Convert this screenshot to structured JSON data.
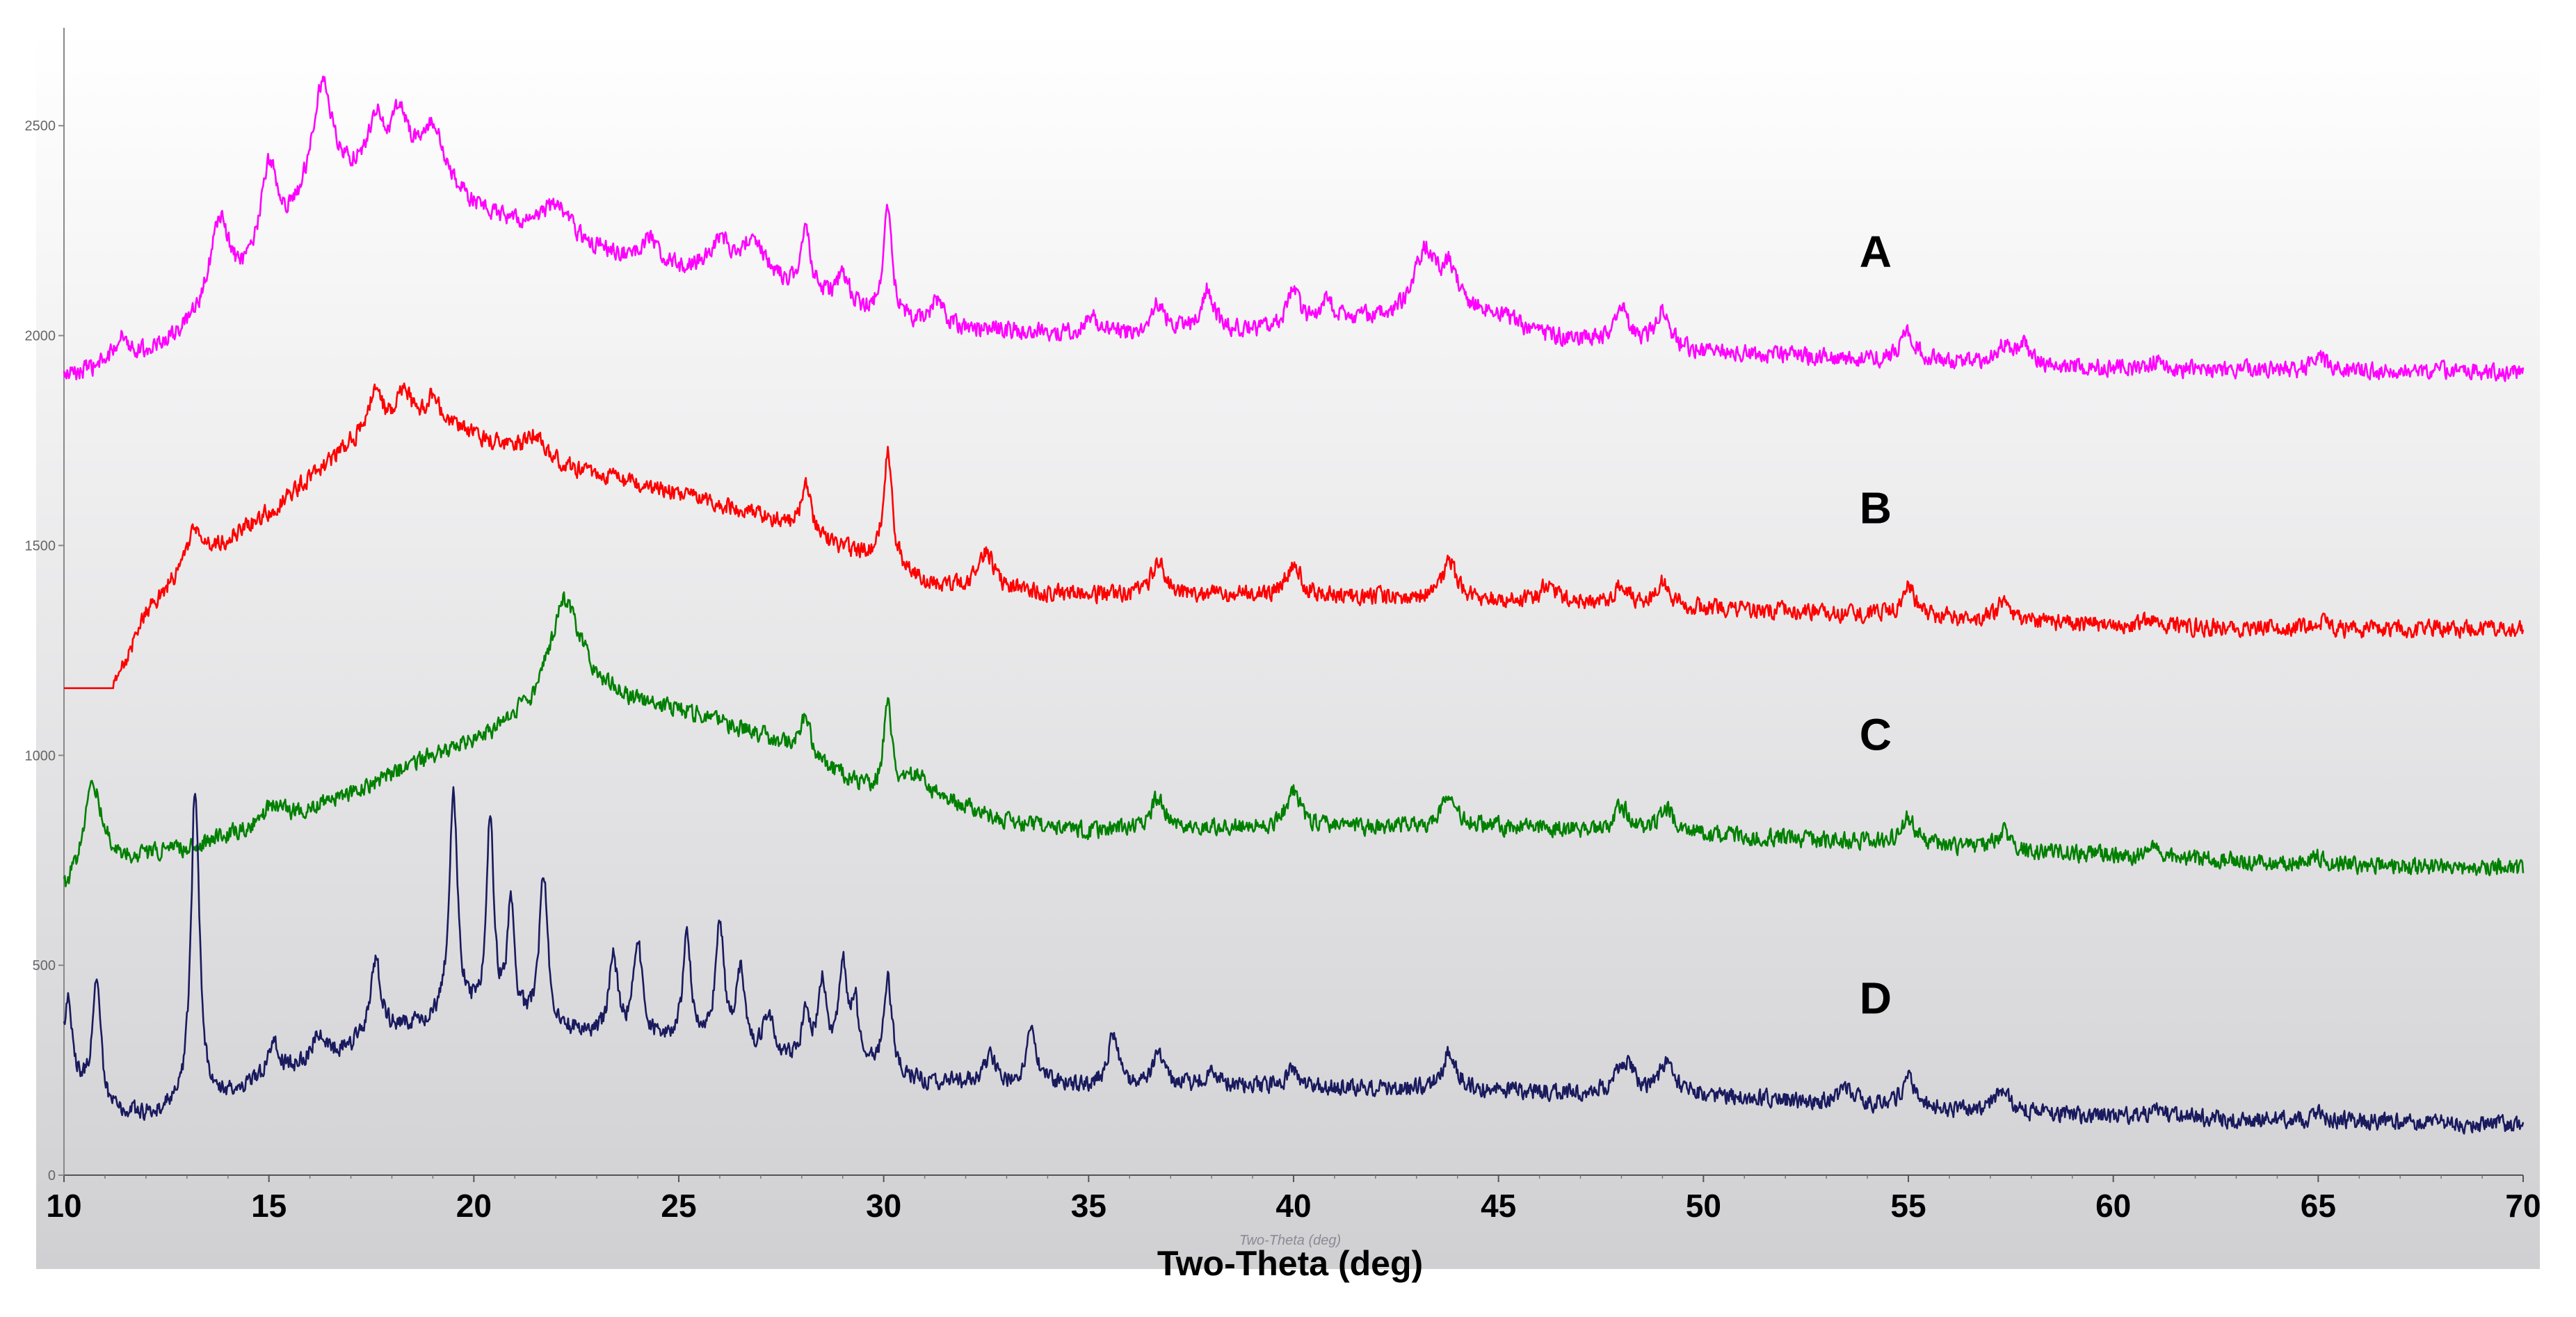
{
  "chart_data": {
    "type": "line",
    "title": "",
    "xlabel": "Two-Theta (deg)",
    "xlabel_ghost": "Two-Theta (deg)",
    "ylabel": "",
    "xlim": [
      10,
      70
    ],
    "ylim": [
      0,
      2700
    ],
    "x_ticks": [
      "10",
      "15",
      "20",
      "25",
      "30",
      "35",
      "40",
      "45",
      "50",
      "55",
      "60",
      "65",
      "70"
    ],
    "y_ticks": [
      "0",
      "500",
      "1000",
      "1500",
      "2000",
      "2500"
    ],
    "grid": false,
    "noise_amplitude": 28,
    "series": [
      {
        "name": "A",
        "color": "#ff00ff",
        "baseline_points": [
          [
            10,
            1900
          ],
          [
            11,
            1920
          ],
          [
            12,
            1950
          ],
          [
            13,
            2000
          ],
          [
            14,
            2060
          ],
          [
            15,
            2150
          ],
          [
            16,
            2300
          ],
          [
            17,
            2360
          ],
          [
            18,
            2390
          ],
          [
            19,
            2370
          ],
          [
            20,
            2300
          ],
          [
            21,
            2260
          ],
          [
            22,
            2230
          ],
          [
            23,
            2200
          ],
          [
            24,
            2170
          ],
          [
            25,
            2150
          ],
          [
            26,
            2150
          ],
          [
            27,
            2140
          ],
          [
            28,
            2100
          ],
          [
            29,
            2060
          ],
          [
            30,
            2040
          ],
          [
            31,
            2020
          ],
          [
            35,
            2000
          ],
          [
            40,
            2010
          ],
          [
            42,
            2040
          ],
          [
            44,
            2050
          ],
          [
            45,
            2050
          ],
          [
            46,
            2000
          ],
          [
            48,
            1980
          ],
          [
            50,
            1960
          ],
          [
            55,
            1940
          ],
          [
            60,
            1920
          ],
          [
            65,
            1915
          ],
          [
            70,
            1915
          ]
        ],
        "peaks": [
          [
            11.4,
            60,
            0.25
          ],
          [
            13.8,
            220,
            0.3
          ],
          [
            15.0,
            240,
            0.25
          ],
          [
            16.3,
            270,
            0.3
          ],
          [
            17.6,
            120,
            0.2
          ],
          [
            18.2,
            130,
            0.25
          ],
          [
            19.0,
            120,
            0.3
          ],
          [
            22.0,
            80,
            0.4
          ],
          [
            24.3,
            60,
            0.3
          ],
          [
            26.0,
            70,
            0.3
          ],
          [
            26.8,
            80,
            0.3
          ],
          [
            28.1,
            140,
            0.15
          ],
          [
            29.0,
            80,
            0.2
          ],
          [
            30.1,
            270,
            0.12
          ],
          [
            31.3,
            60,
            0.2
          ],
          [
            35.1,
            40,
            0.2
          ],
          [
            36.7,
            70,
            0.2
          ],
          [
            37.9,
            100,
            0.2
          ],
          [
            40.0,
            90,
            0.2
          ],
          [
            40.8,
            60,
            0.2
          ],
          [
            43.2,
            150,
            0.3
          ],
          [
            43.8,
            100,
            0.25
          ],
          [
            48.0,
            80,
            0.2
          ],
          [
            49.0,
            90,
            0.2
          ],
          [
            55.0,
            70,
            0.2
          ],
          [
            57.3,
            45,
            0.2
          ],
          [
            57.8,
            50,
            0.2
          ],
          [
            61.0,
            20,
            0.2
          ],
          [
            65.0,
            40,
            0.2
          ]
        ],
        "label": "A",
        "label_position": "right"
      },
      {
        "name": "B",
        "color": "#ff0000",
        "flat_until": 11.2,
        "flat_value": 1160,
        "baseline_points": [
          [
            11.2,
            1160
          ],
          [
            12,
            1340
          ],
          [
            13,
            1450
          ],
          [
            14,
            1510
          ],
          [
            15,
            1580
          ],
          [
            16,
            1660
          ],
          [
            17,
            1740
          ],
          [
            18,
            1780
          ],
          [
            19,
            1790
          ],
          [
            20,
            1760
          ],
          [
            21,
            1720
          ],
          [
            22,
            1690
          ],
          [
            23,
            1670
          ],
          [
            24,
            1640
          ],
          [
            25,
            1620
          ],
          [
            26,
            1600
          ],
          [
            27,
            1570
          ],
          [
            28,
            1530
          ],
          [
            29,
            1490
          ],
          [
            30,
            1470
          ],
          [
            31,
            1410
          ],
          [
            35,
            1380
          ],
          [
            40,
            1380
          ],
          [
            45,
            1370
          ],
          [
            50,
            1350
          ],
          [
            55,
            1330
          ],
          [
            60,
            1310
          ],
          [
            65,
            1300
          ],
          [
            70,
            1300
          ]
        ],
        "peaks": [
          [
            13.2,
            80,
            0.2
          ],
          [
            17.6,
            100,
            0.2
          ],
          [
            18.3,
            80,
            0.2
          ],
          [
            19.0,
            60,
            0.2
          ],
          [
            21.5,
            60,
            0.3
          ],
          [
            28.1,
            120,
            0.15
          ],
          [
            30.1,
            260,
            0.12
          ],
          [
            32.5,
            90,
            0.2
          ],
          [
            36.7,
            80,
            0.2
          ],
          [
            40.0,
            80,
            0.2
          ],
          [
            43.8,
            90,
            0.2
          ],
          [
            46.2,
            40,
            0.2
          ],
          [
            48.0,
            50,
            0.2
          ],
          [
            49.0,
            60,
            0.2
          ],
          [
            55.0,
            70,
            0.2
          ],
          [
            57.3,
            40,
            0.2
          ],
          [
            61.0,
            20,
            0.2
          ],
          [
            65.0,
            20,
            0.2
          ]
        ],
        "label": "B",
        "label_position": "right"
      },
      {
        "name": "C",
        "color": "#008000",
        "baseline_points": [
          [
            10,
            670
          ],
          [
            10.8,
            760
          ],
          [
            11.5,
            750
          ],
          [
            13,
            780
          ],
          [
            15,
            840
          ],
          [
            17,
            910
          ],
          [
            19,
            1000
          ],
          [
            20.5,
            1060
          ],
          [
            21.5,
            1150
          ],
          [
            22.2,
            1380
          ],
          [
            23,
            1190
          ],
          [
            24,
            1130
          ],
          [
            25,
            1110
          ],
          [
            26,
            1080
          ],
          [
            27,
            1050
          ],
          [
            28,
            1000
          ],
          [
            29,
            950
          ],
          [
            30,
            900
          ],
          [
            31,
            900
          ],
          [
            32,
            880
          ],
          [
            33,
            840
          ],
          [
            35,
            820
          ],
          [
            40,
            830
          ],
          [
            45,
            830
          ],
          [
            50,
            810
          ],
          [
            55,
            790
          ],
          [
            60,
            760
          ],
          [
            65,
            740
          ],
          [
            70,
            730
          ]
        ],
        "peaks": [
          [
            10.7,
            180,
            0.25
          ],
          [
            15.1,
            40,
            0.25
          ],
          [
            28.1,
            100,
            0.15
          ],
          [
            30.1,
            230,
            0.12
          ],
          [
            30.8,
            50,
            0.3
          ],
          [
            36.7,
            80,
            0.2
          ],
          [
            40.0,
            90,
            0.2
          ],
          [
            43.8,
            80,
            0.2
          ],
          [
            48.0,
            60,
            0.2
          ],
          [
            49.1,
            60,
            0.2
          ],
          [
            55.0,
            60,
            0.2
          ],
          [
            57.3,
            40,
            0.2
          ],
          [
            61.0,
            20,
            0.2
          ],
          [
            65.0,
            20,
            0.2
          ]
        ],
        "label": "C",
        "label_position": "right"
      },
      {
        "name": "D",
        "color": "#1a1a5e",
        "baseline_points": [
          [
            10,
            250
          ],
          [
            11,
            150
          ],
          [
            12,
            140
          ],
          [
            13,
            160
          ],
          [
            14,
            190
          ],
          [
            15,
            230
          ],
          [
            16,
            270
          ],
          [
            17,
            300
          ],
          [
            18,
            340
          ],
          [
            19,
            360
          ],
          [
            20,
            370
          ],
          [
            21,
            360
          ],
          [
            22,
            340
          ],
          [
            23,
            330
          ],
          [
            24,
            320
          ],
          [
            25,
            310
          ],
          [
            26,
            300
          ],
          [
            27,
            280
          ],
          [
            28,
            260
          ],
          [
            29,
            250
          ],
          [
            30,
            240
          ],
          [
            31,
            220
          ],
          [
            35,
            210
          ],
          [
            40,
            210
          ],
          [
            45,
            200
          ],
          [
            50,
            190
          ],
          [
            55,
            160
          ],
          [
            60,
            140
          ],
          [
            65,
            130
          ],
          [
            70,
            120
          ]
        ],
        "peaks": [
          [
            10.1,
            180,
            0.1
          ],
          [
            10.8,
            290,
            0.12
          ],
          [
            13.2,
            760,
            0.12
          ],
          [
            15.1,
            80,
            0.15
          ],
          [
            16.2,
            60,
            0.15
          ],
          [
            17.6,
            190,
            0.15
          ],
          [
            19.5,
            540,
            0.12
          ],
          [
            20.4,
            480,
            0.1
          ],
          [
            20.9,
            280,
            0.1
          ],
          [
            21.7,
            370,
            0.12
          ],
          [
            23.4,
            200,
            0.12
          ],
          [
            24.0,
            240,
            0.12
          ],
          [
            25.2,
            250,
            0.12
          ],
          [
            26.0,
            300,
            0.12
          ],
          [
            26.5,
            180,
            0.12
          ],
          [
            27.2,
            100,
            0.15
          ],
          [
            28.1,
            120,
            0.12
          ],
          [
            28.5,
            200,
            0.12
          ],
          [
            29.0,
            250,
            0.12
          ],
          [
            29.3,
            150,
            0.1
          ],
          [
            30.1,
            230,
            0.12
          ],
          [
            32.6,
            70,
            0.15
          ],
          [
            33.6,
            130,
            0.15
          ],
          [
            35.6,
            130,
            0.15
          ],
          [
            36.7,
            90,
            0.15
          ],
          [
            38.0,
            40,
            0.2
          ],
          [
            40.0,
            40,
            0.2
          ],
          [
            43.8,
            90,
            0.2
          ],
          [
            48.0,
            50,
            0.2
          ],
          [
            48.2,
            40,
            0.2
          ],
          [
            49.1,
            80,
            0.2
          ],
          [
            53.5,
            40,
            0.2
          ],
          [
            55.0,
            70,
            0.2
          ],
          [
            57.3,
            50,
            0.2
          ],
          [
            61.0,
            20,
            0.2
          ],
          [
            65.0,
            20,
            0.2
          ]
        ],
        "label": "D",
        "label_position": "right"
      }
    ]
  }
}
